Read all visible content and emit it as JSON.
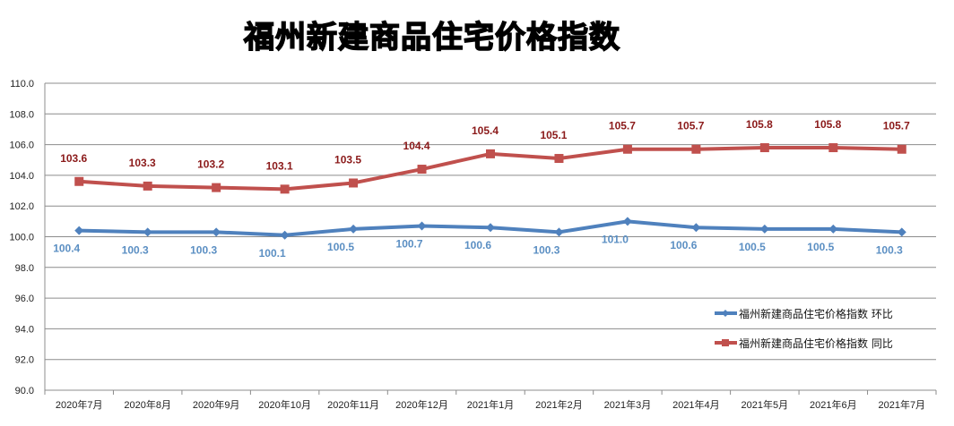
{
  "chart_data": {
    "type": "line",
    "title": "福州新建商品住宅价格指数",
    "categories": [
      "2020年7月",
      "2020年8月",
      "2020年9月",
      "2020年10月",
      "2020年11月",
      "2020年12月",
      "2021年1月",
      "2021年2月",
      "2021年3月",
      "2021年4月",
      "2021年5月",
      "2021年6月",
      "2021年7月"
    ],
    "ylim": [
      90,
      110
    ],
    "yticks": [
      "90.0",
      "92.0",
      "94.0",
      "96.0",
      "98.0",
      "100.0",
      "102.0",
      "104.0",
      "106.0",
      "108.0",
      "110.0"
    ],
    "grid": true,
    "legend_position": "right",
    "series": [
      {
        "name": "福州新建商品住宅价格指数 环比",
        "color": "#4f81bd",
        "marker": "diamond",
        "values": [
          100.4,
          100.3,
          100.3,
          100.1,
          100.5,
          100.7,
          100.6,
          100.3,
          101.0,
          100.6,
          100.5,
          100.5,
          100.3
        ],
        "labels": [
          "100.4",
          "100.3",
          "100.3",
          "100.1",
          "100.5",
          "100.7",
          "100.6",
          "100.3",
          "101.0",
          "100.6",
          "100.5",
          "100.5",
          "100.3"
        ]
      },
      {
        "name": "福州新建商品住宅价格指数 同比",
        "color": "#c0504d",
        "marker": "square",
        "values": [
          103.6,
          103.3,
          103.2,
          103.1,
          103.5,
          104.4,
          105.4,
          105.1,
          105.7,
          105.7,
          105.8,
          105.8,
          105.7
        ],
        "labels": [
          "103.6",
          "103.3",
          "103.2",
          "103.1",
          "103.5",
          "104.4",
          "105.4",
          "105.1",
          "105.7",
          "105.7",
          "105.8",
          "105.8",
          "105.7"
        ]
      }
    ]
  }
}
